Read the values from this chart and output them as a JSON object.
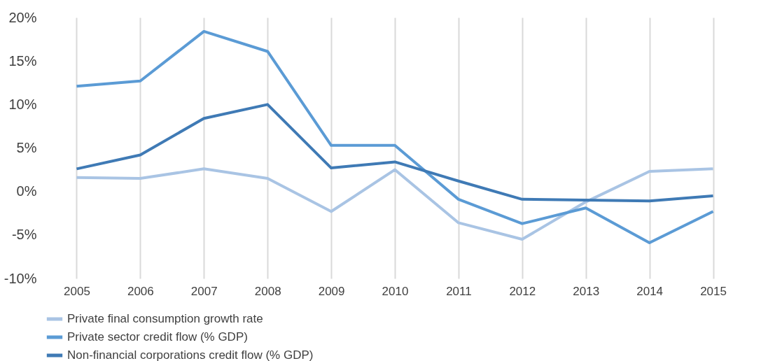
{
  "chart_data": {
    "type": "line",
    "categories": [
      "2005",
      "2006",
      "2007",
      "2008",
      "2009",
      "2010",
      "2011",
      "2012",
      "2013",
      "2014",
      "2015"
    ],
    "series": [
      {
        "name": "Private final consumption growth rate",
        "color": "#a9c4e4",
        "values": [
          1.6,
          1.5,
          2.6,
          1.5,
          -2.3,
          2.5,
          -3.6,
          -5.5,
          -1.2,
          2.3,
          2.6
        ]
      },
      {
        "name": "Private sector credit flow (% GDP)",
        "color": "#5b9bd5",
        "values": [
          12.1,
          12.7,
          18.4,
          16.1,
          5.3,
          5.3,
          -0.9,
          -3.7,
          -1.9,
          -5.9,
          -2.3
        ]
      },
      {
        "name": "Non-financial corporations credit flow (% GDP)",
        "color": "#3f7ab5",
        "values": [
          2.6,
          4.2,
          8.4,
          10.0,
          2.7,
          3.4,
          1.2,
          -0.9,
          -1.0,
          -1.1,
          -0.5
        ]
      }
    ],
    "ylim": [
      -10,
      20
    ],
    "yticks": [
      {
        "value": -10,
        "label": "-10%"
      },
      {
        "value": -5,
        "label": "-5%"
      },
      {
        "value": 0,
        "label": "0%"
      },
      {
        "value": 5,
        "label": "5%"
      },
      {
        "value": 10,
        "label": "10%"
      },
      {
        "value": 15,
        "label": "15%"
      },
      {
        "value": 20,
        "label": "20%"
      }
    ],
    "grid": "x",
    "legend": "bottom",
    "marker": "none",
    "line_style": "solid"
  }
}
